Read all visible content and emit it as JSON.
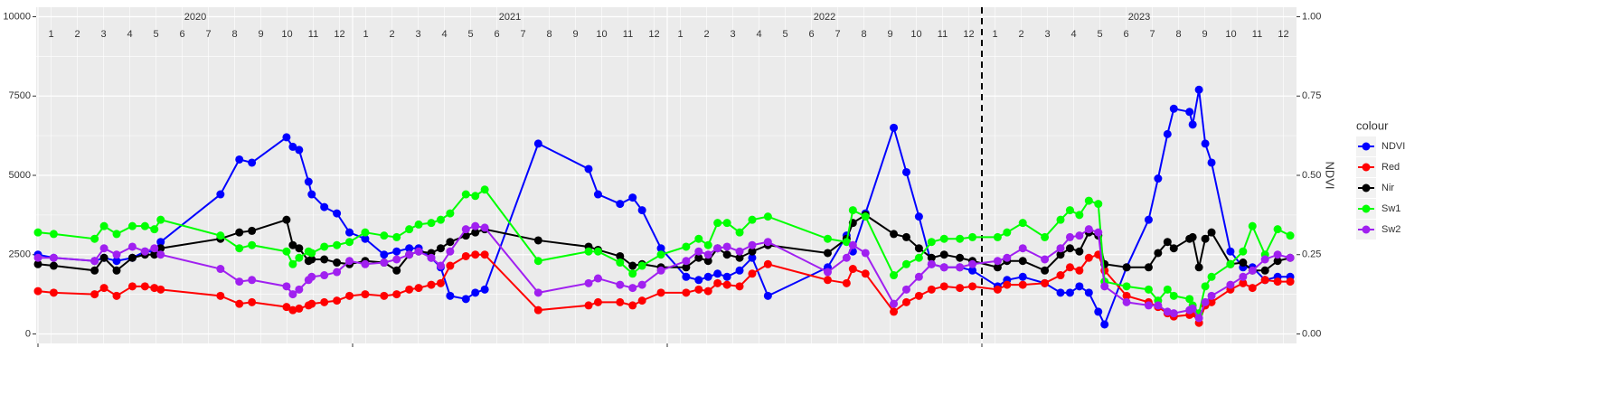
{
  "chart_data": {
    "type": "line",
    "x_row_labels": [
      "1",
      "2",
      "3",
      "4",
      "5",
      "6",
      "7",
      "8",
      "9",
      "10",
      "11",
      "12"
    ],
    "strip_labels": [
      "2020",
      "2021",
      "2022",
      "2023"
    ],
    "y2label": "NDVI",
    "legend_title": "colour",
    "legend": "right",
    "grid": true,
    "vline": 2023,
    "xlim": [
      2020,
      2024
    ],
    "xticks": [
      2020,
      2021,
      2022,
      2023
    ],
    "ylim": [
      -300,
      10300
    ],
    "yticks": [
      0,
      2500,
      5000,
      7500,
      10000
    ],
    "y2lim": [
      -0.03,
      1.03
    ],
    "y2ticks": [
      {
        "value": 0,
        "label": "0.00"
      },
      {
        "value": 0.25,
        "label": "0.25"
      },
      {
        "value": 0.5,
        "label": "0.50"
      },
      {
        "value": 0.75,
        "label": "0.75"
      },
      {
        "value": 1,
        "label": "1.00"
      }
    ],
    "x": [
      2020.0,
      2020.05,
      2020.18,
      2020.21,
      2020.25,
      2020.3,
      2020.34,
      2020.37,
      2020.39,
      2020.58,
      2020.64,
      2020.68,
      2020.79,
      2020.81,
      2020.83,
      2020.86,
      2020.87,
      2020.91,
      2020.95,
      2020.99,
      2021.04,
      2021.1,
      2021.14,
      2021.18,
      2021.21,
      2021.25,
      2021.28,
      2021.31,
      2021.36,
      2021.39,
      2021.42,
      2021.59,
      2021.75,
      2021.78,
      2021.85,
      2021.89,
      2021.92,
      2021.98,
      2022.06,
      2022.1,
      2022.13,
      2022.16,
      2022.19,
      2022.23,
      2022.27,
      2022.32,
      2022.51,
      2022.57,
      2022.59,
      2022.63,
      2022.72,
      2022.76,
      2022.8,
      2022.84,
      2022.88,
      2022.93,
      2022.97,
      2023.05,
      2023.08,
      2023.13,
      2023.2,
      2023.25,
      2023.28,
      2023.31,
      2023.34,
      2023.37,
      2023.39,
      2023.46,
      2023.53,
      2023.56,
      2023.59,
      2023.61,
      2023.66,
      2023.67,
      2023.69,
      2023.71,
      2023.73,
      2023.79,
      2023.83,
      2023.86,
      2023.9,
      2023.94,
      2023.98
    ],
    "series": [
      {
        "name": "NDVI",
        "color": "#0000ff",
        "axis": "y2",
        "values": [
          0.25,
          0.24,
          0.23,
          0.24,
          0.23,
          0.24,
          0.26,
          0.26,
          0.29,
          0.44,
          0.55,
          0.54,
          0.62,
          0.59,
          0.58,
          0.48,
          0.44,
          0.4,
          0.38,
          0.32,
          0.3,
          0.25,
          0.26,
          0.27,
          0.27,
          0.24,
          0.21,
          0.12,
          0.11,
          0.13,
          0.14,
          0.6,
          0.52,
          0.44,
          0.41,
          0.43,
          0.39,
          0.27,
          0.18,
          0.17,
          0.18,
          0.19,
          0.18,
          0.2,
          0.24,
          0.12,
          0.21,
          0.31,
          0.26,
          0.38,
          0.65,
          0.51,
          0.37,
          0.22,
          0.21,
          0.21,
          0.2,
          0.15,
          0.17,
          0.18,
          0.16,
          0.13,
          0.13,
          0.15,
          0.13,
          0.07,
          0.03,
          0.21,
          0.36,
          0.49,
          0.63,
          0.71,
          0.7,
          0.66,
          0.77,
          0.6,
          0.54,
          0.26,
          0.21,
          0.21,
          0.17,
          0.18,
          0.18
        ]
      },
      {
        "name": "Red",
        "color": "#ff0000",
        "values": [
          1350,
          1300,
          1250,
          1450,
          1200,
          1500,
          1500,
          1450,
          1400,
          1200,
          950,
          1000,
          850,
          750,
          800,
          900,
          950,
          1000,
          1050,
          1200,
          1250,
          1200,
          1250,
          1400,
          1450,
          1550,
          1600,
          2150,
          2450,
          2500,
          2500,
          750,
          900,
          1000,
          1000,
          900,
          1050,
          1300,
          1300,
          1400,
          1350,
          1600,
          1550,
          1500,
          1900,
          2200,
          1700,
          1600,
          2050,
          1900,
          700,
          1000,
          1200,
          1400,
          1500,
          1450,
          1500,
          1400,
          1550,
          1550,
          1600,
          1850,
          2100,
          2000,
          2400,
          2500,
          2000,
          1200,
          1000,
          850,
          650,
          550,
          600,
          650,
          350,
          900,
          1000,
          1400,
          1600,
          1450,
          1700,
          1650,
          1650
        ]
      },
      {
        "name": "Nir",
        "color": "#000000",
        "values": [
          2200,
          2150,
          2000,
          2400,
          2000,
          2400,
          2500,
          2500,
          2700,
          3000,
          3200,
          3250,
          3600,
          2800,
          2700,
          2300,
          2350,
          2350,
          2250,
          2200,
          2300,
          2250,
          2000,
          2500,
          2600,
          2550,
          2700,
          2900,
          3100,
          3200,
          3300,
          2950,
          2750,
          2650,
          2450,
          2150,
          2200,
          2100,
          2100,
          2400,
          2300,
          2700,
          2500,
          2400,
          2600,
          2800,
          2550,
          3000,
          3500,
          3750,
          3150,
          3050,
          2700,
          2400,
          2500,
          2400,
          2300,
          2100,
          2300,
          2300,
          2000,
          2500,
          2700,
          2600,
          3200,
          3100,
          2200,
          2100,
          2100,
          2550,
          2900,
          2700,
          3000,
          3050,
          2100,
          3000,
          3200,
          2200,
          2250,
          2000,
          2000,
          2300,
          2400
        ]
      },
      {
        "name": "Sw1",
        "color": "#00ff00",
        "values": [
          3200,
          3150,
          3000,
          3400,
          3150,
          3400,
          3400,
          3300,
          3600,
          3100,
          2700,
          2800,
          2600,
          2200,
          2400,
          2600,
          2550,
          2750,
          2800,
          2900,
          3200,
          3100,
          3050,
          3300,
          3450,
          3500,
          3600,
          3800,
          4400,
          4350,
          4550,
          2300,
          2600,
          2600,
          2250,
          1900,
          2150,
          2500,
          2750,
          3000,
          2800,
          3500,
          3500,
          3200,
          3600,
          3700,
          3000,
          2900,
          3900,
          3700,
          1850,
          2200,
          2400,
          2900,
          3000,
          3000,
          3050,
          3050,
          3200,
          3500,
          3050,
          3600,
          3900,
          3750,
          4200,
          4100,
          1650,
          1500,
          1400,
          1050,
          1400,
          1200,
          1100,
          900,
          650,
          1500,
          1800,
          2200,
          2600,
          3400,
          2500,
          3300,
          3100
        ]
      },
      {
        "name": "Sw2",
        "color": "#a020f0",
        "values": [
          2400,
          2400,
          2300,
          2700,
          2500,
          2750,
          2600,
          2700,
          2500,
          2050,
          1650,
          1700,
          1500,
          1250,
          1400,
          1700,
          1800,
          1850,
          1950,
          2300,
          2200,
          2250,
          2350,
          2500,
          2600,
          2400,
          2150,
          2600,
          3300,
          3400,
          3350,
          1300,
          1600,
          1750,
          1550,
          1450,
          1550,
          2000,
          2300,
          2600,
          2500,
          2700,
          2750,
          2600,
          2800,
          2900,
          1950,
          2400,
          2800,
          2550,
          950,
          1400,
          1800,
          2200,
          2100,
          2100,
          2200,
          2300,
          2400,
          2700,
          2350,
          2700,
          3050,
          3100,
          3300,
          3200,
          1500,
          1000,
          900,
          900,
          700,
          650,
          750,
          800,
          500,
          1000,
          1200,
          1550,
          1800,
          2000,
          2350,
          2500,
          2400
        ]
      }
    ]
  }
}
